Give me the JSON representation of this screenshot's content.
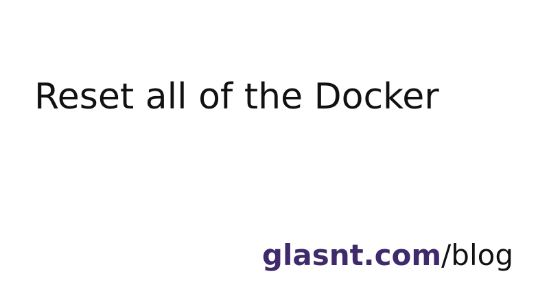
{
  "title": "Reset all of the Docker",
  "footer": {
    "domain": "glasnt.com",
    "path": "/blog"
  },
  "colors": {
    "background": "#ffffff",
    "text": "#111111",
    "brand": "#3f2a6b"
  }
}
